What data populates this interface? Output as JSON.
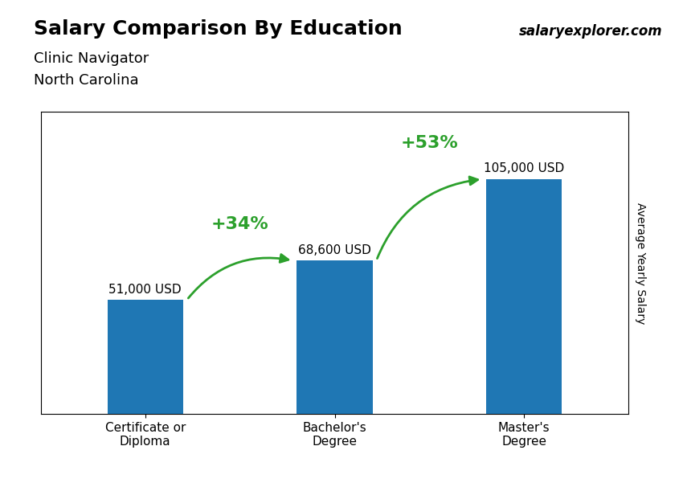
{
  "chart_data": {
    "type": "bar",
    "title": "Salary Comparison By Education",
    "subtitle": [
      "Clinic Navigator",
      "North Carolina"
    ],
    "ylabel": "Average Yearly Salary",
    "categories": [
      "Certificate or\nDiploma",
      "Bachelor's\nDegree",
      "Master's\nDegree"
    ],
    "values": [
      51000,
      68600,
      105000
    ],
    "value_labels": [
      "51,000 USD",
      "68,600 USD",
      "105,000 USD"
    ],
    "data_labels": true,
    "annotations": [
      "+34%",
      "+53%",
      "salaryexplorer.com"
    ],
    "ylim": [
      0,
      135000
    ],
    "tick_labels": "x",
    "grid": false
  }
}
